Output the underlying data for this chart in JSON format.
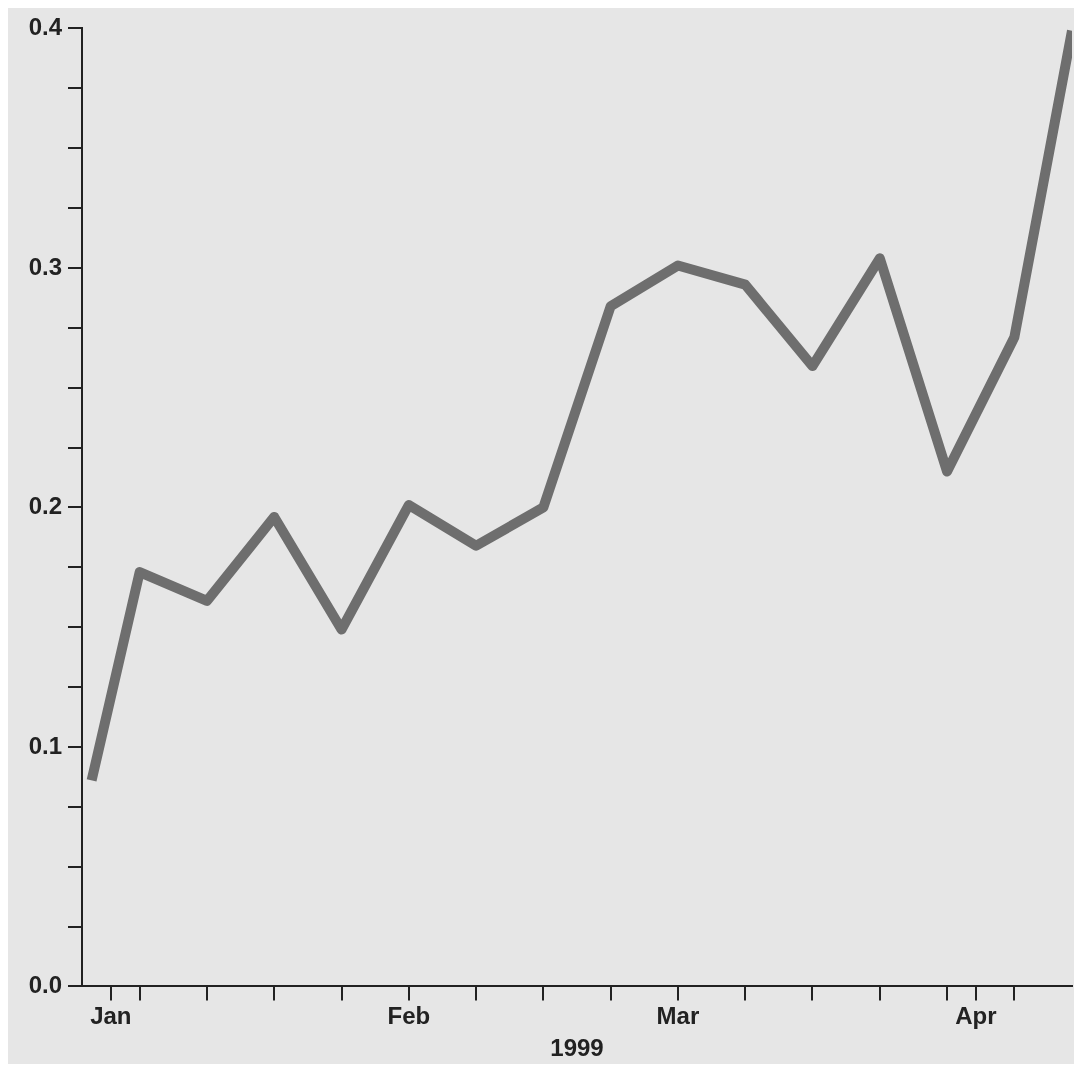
{
  "chart_data": {
    "type": "line",
    "xlabel": "1999",
    "x": [
      "1998-12-30",
      "1999-01-04",
      "1999-01-11",
      "1999-01-18",
      "1999-01-25",
      "1999-02-01",
      "1999-02-08",
      "1999-02-15",
      "1999-02-22",
      "1999-03-01",
      "1999-03-08",
      "1999-03-15",
      "1999-03-22",
      "1999-03-29",
      "1999-04-05",
      "1999-04-11"
    ],
    "series": [
      {
        "color": "#6e6e6e",
        "values": [
          0.086,
          0.173,
          0.161,
          0.196,
          0.149,
          0.201,
          0.184,
          0.2,
          0.284,
          0.301,
          0.293,
          0.259,
          0.304,
          0.215,
          0.271,
          0.399
        ]
      }
    ],
    "xlim": [
      "1998-12-29",
      "1999-04-11"
    ],
    "xticks": [
      {
        "value": "1999-01-01",
        "label": "Jan"
      },
      {
        "value": "1999-01-04",
        "label": null
      },
      {
        "value": "1999-01-11",
        "label": null
      },
      {
        "value": "1999-01-18",
        "label": null
      },
      {
        "value": "1999-01-25",
        "label": null
      },
      {
        "value": "1999-02-01",
        "label": "Feb"
      },
      {
        "value": "1999-02-08",
        "label": null
      },
      {
        "value": "1999-02-15",
        "label": null
      },
      {
        "value": "1999-02-22",
        "label": null
      },
      {
        "value": "1999-03-01",
        "label": "Mar"
      },
      {
        "value": "1999-03-08",
        "label": null
      },
      {
        "value": "1999-03-15",
        "label": null
      },
      {
        "value": "1999-03-22",
        "label": null
      },
      {
        "value": "1999-03-29",
        "label": null
      },
      {
        "value": "1999-04-01",
        "label": "Apr"
      },
      {
        "value": "1999-04-05",
        "label": null
      }
    ],
    "ylim": [
      0,
      0.4
    ],
    "yticks": [
      {
        "value": 0,
        "label": "0.0"
      },
      {
        "value": 0.025,
        "label": null
      },
      {
        "value": 0.05,
        "label": null
      },
      {
        "value": 0.075,
        "label": null
      },
      {
        "value": 0.1,
        "label": "0.1"
      },
      {
        "value": 0.125,
        "label": null
      },
      {
        "value": 0.15,
        "label": null
      },
      {
        "value": 0.175,
        "label": null
      },
      {
        "value": 0.2,
        "label": "0.2"
      },
      {
        "value": 0.225,
        "label": null
      },
      {
        "value": 0.25,
        "label": null
      },
      {
        "value": 0.275,
        "label": null
      },
      {
        "value": 0.3,
        "label": "0.3"
      },
      {
        "value": 0.325,
        "label": null
      },
      {
        "value": 0.35,
        "label": null
      },
      {
        "value": 0.375,
        "label": null
      },
      {
        "value": 0.4,
        "label": "0.4"
      }
    ],
    "grid": false,
    "legend": false,
    "marker": "none",
    "line_style": "solid"
  }
}
